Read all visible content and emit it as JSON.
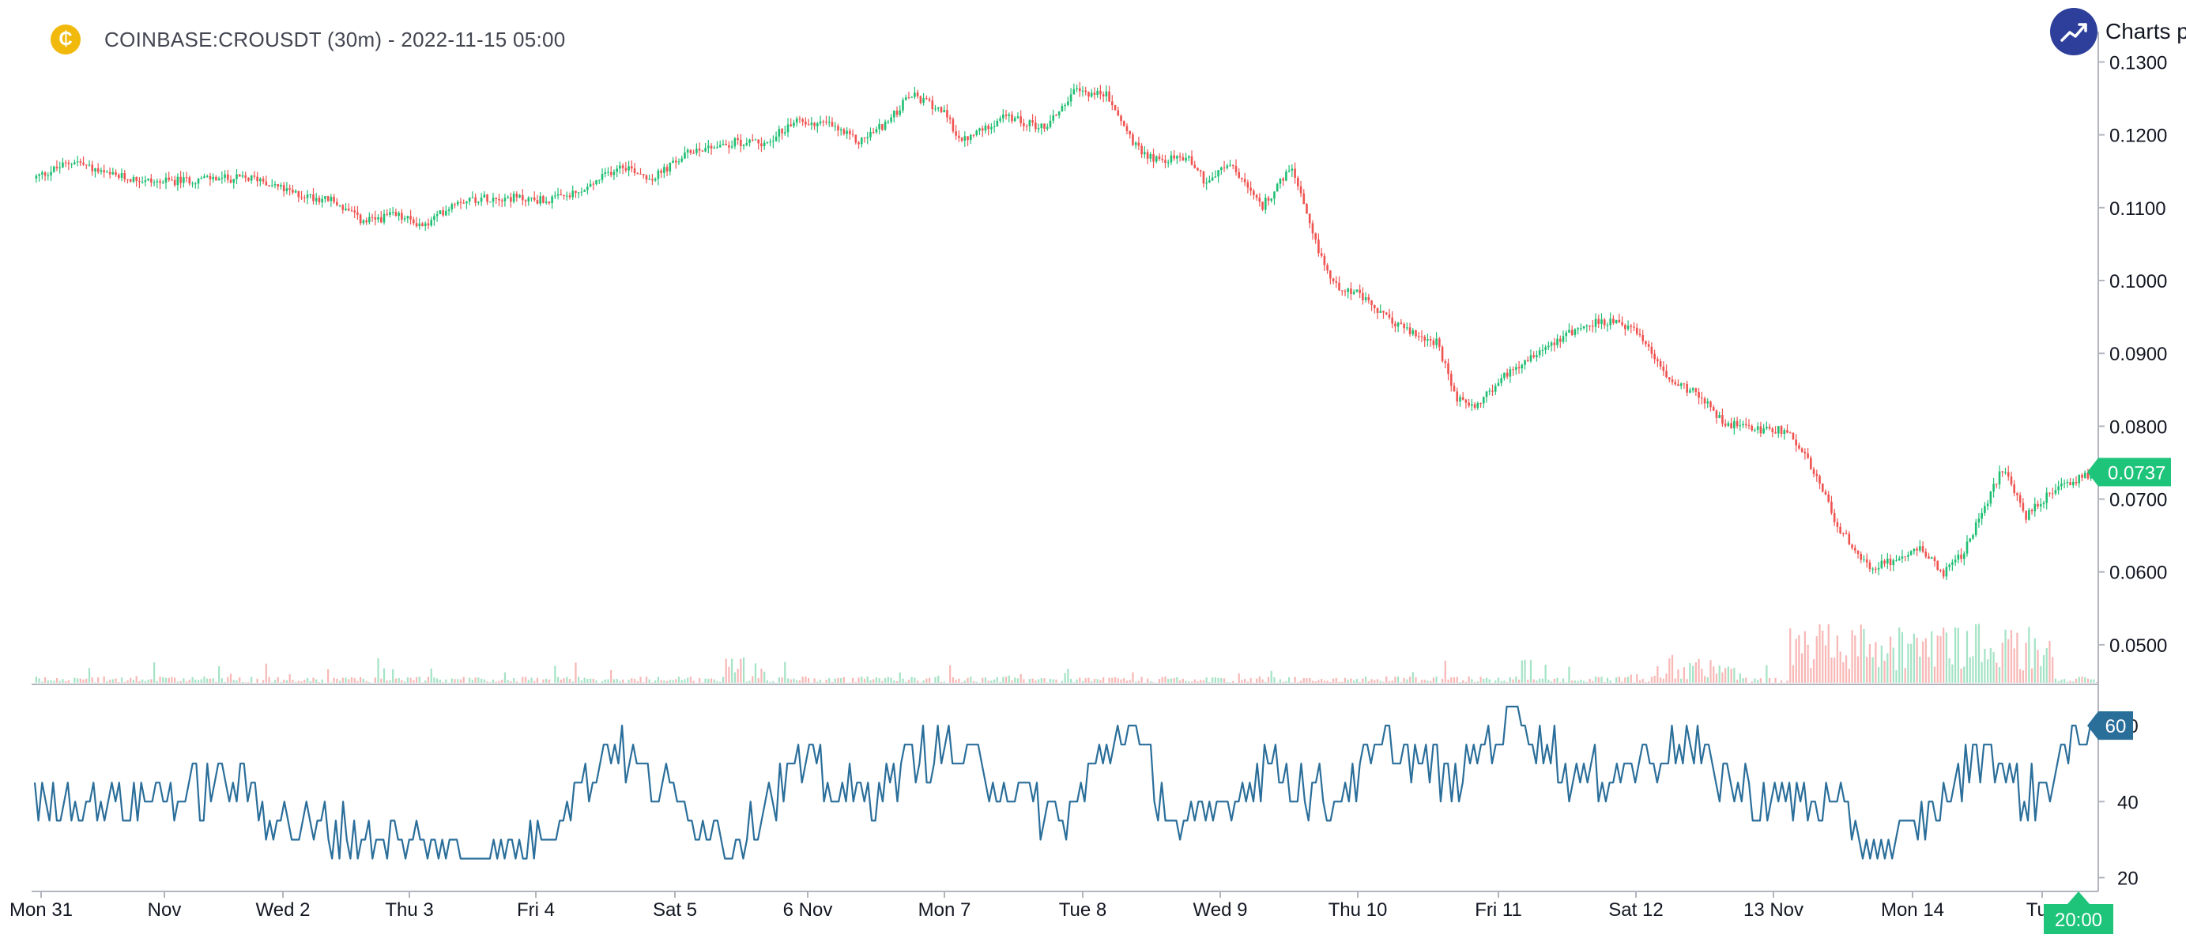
{
  "header": {
    "symbol_icon": "coin-icon",
    "symbol_glyph": "₵",
    "title": "COINBASE:CROUSDT (30m) - 2022-11-15 05:00"
  },
  "brand": {
    "label": "Charts p",
    "icon": "trend-up-icon"
  },
  "colors": {
    "up": "#26a69a",
    "up_bright": "#1fbf73",
    "down": "#ef5350",
    "oscillator": "#2a6e9a",
    "price_badge": "#1ec47a",
    "osc_badge": "#2a6e9a",
    "time_badge": "#1ec47a"
  },
  "chart_data": [
    {
      "type": "candlestick",
      "title": "",
      "ylim": [
        0.045,
        0.132
      ],
      "y_ticks": [
        "0.1300",
        "0.1200",
        "0.1100",
        "0.1000",
        "0.0900",
        "0.0800",
        "0.0700",
        "0.0600",
        "0.0500"
      ],
      "x_ticks": [
        "Mon 31",
        "Nov",
        "Wed 2",
        "Thu 3",
        "Fri 4",
        "Sat 5",
        "6 Nov",
        "Mon 7",
        "Tue 8",
        "Wed 9",
        "Thu 10",
        "Fri 11",
        "Sat 12",
        "13 Nov",
        "Mon 14",
        "Tue"
      ],
      "last_value": "0.0737",
      "close_path": [
        [
          0,
          0.114
        ],
        [
          0.02,
          0.1165
        ],
        [
          0.035,
          0.1145
        ],
        [
          0.06,
          0.1135
        ],
        [
          0.085,
          0.114
        ],
        [
          0.11,
          0.114
        ],
        [
          0.125,
          0.112
        ],
        [
          0.145,
          0.111
        ],
        [
          0.16,
          0.108
        ],
        [
          0.175,
          0.109
        ],
        [
          0.19,
          0.1075
        ],
        [
          0.205,
          0.111
        ],
        [
          0.225,
          0.1115
        ],
        [
          0.25,
          0.111
        ],
        [
          0.265,
          0.112
        ],
        [
          0.285,
          0.116
        ],
        [
          0.3,
          0.114
        ],
        [
          0.32,
          0.118
        ],
        [
          0.34,
          0.119
        ],
        [
          0.355,
          0.119
        ],
        [
          0.37,
          0.122
        ],
        [
          0.385,
          0.1215
        ],
        [
          0.4,
          0.119
        ],
        [
          0.415,
          0.122
        ],
        [
          0.425,
          0.1255
        ],
        [
          0.44,
          0.1235
        ],
        [
          0.45,
          0.119
        ],
        [
          0.47,
          0.1225
        ],
        [
          0.49,
          0.121
        ],
        [
          0.505,
          0.126
        ],
        [
          0.52,
          0.1255
        ],
        [
          0.535,
          0.118
        ],
        [
          0.545,
          0.1165
        ],
        [
          0.56,
          0.117
        ],
        [
          0.568,
          0.1135
        ],
        [
          0.58,
          0.116
        ],
        [
          0.595,
          0.11
        ],
        [
          0.61,
          0.1155
        ],
        [
          0.62,
          0.106
        ],
        [
          0.63,
          0.0995
        ],
        [
          0.64,
          0.0985
        ],
        [
          0.655,
          0.095
        ],
        [
          0.67,
          0.0925
        ],
        [
          0.68,
          0.0915
        ],
        [
          0.69,
          0.0835
        ],
        [
          0.7,
          0.083
        ],
        [
          0.715,
          0.0875
        ],
        [
          0.73,
          0.0905
        ],
        [
          0.745,
          0.093
        ],
        [
          0.76,
          0.0945
        ],
        [
          0.775,
          0.0935
        ],
        [
          0.79,
          0.0875
        ],
        [
          0.805,
          0.0845
        ],
        [
          0.82,
          0.0805
        ],
        [
          0.835,
          0.0795
        ],
        [
          0.85,
          0.0795
        ],
        [
          0.86,
          0.0755
        ],
        [
          0.875,
          0.066
        ],
        [
          0.89,
          0.0605
        ],
        [
          0.905,
          0.062
        ],
        [
          0.915,
          0.0635
        ],
        [
          0.925,
          0.0595
        ],
        [
          0.935,
          0.0625
        ],
        [
          0.945,
          0.0685
        ],
        [
          0.955,
          0.0745
        ],
        [
          0.965,
          0.0675
        ],
        [
          0.98,
          0.0715
        ],
        [
          1.0,
          0.0737
        ]
      ]
    },
    {
      "type": "line",
      "title": "",
      "ylim": [
        17,
        70
      ],
      "y_ticks": [
        "60",
        "40",
        "20"
      ],
      "last_value": "60"
    }
  ],
  "time_badge": "20:00"
}
